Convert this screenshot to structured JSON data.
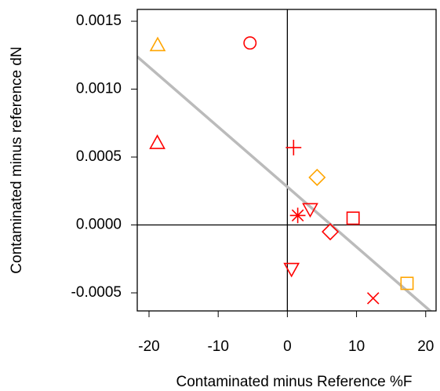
{
  "chart_data": {
    "type": "scatter",
    "x_label": "Contaminated minus Reference %F",
    "y_label": "Contaminated minus reference dN",
    "xlim": [
      -21.7,
      21.5
    ],
    "ylim": [
      -0.000633,
      0.001587
    ],
    "xticks": [
      -20,
      -10,
      0,
      10,
      20
    ],
    "yticks": [
      {
        "value": -0.0005,
        "label": "-0.0005"
      },
      {
        "value": 0,
        "label": "0.0000"
      },
      {
        "value": 0.0005,
        "label": "0.0005"
      },
      {
        "value": 0.001,
        "label": "0.0010"
      },
      {
        "value": 0.0015,
        "label": "0.0015"
      }
    ],
    "x": [
      -18.75,
      -5.4,
      -18.8,
      0.9,
      4.3,
      1.5,
      3.3,
      9.5,
      6.2,
      0.6,
      17.3,
      12.4
    ],
    "y": [
      0.00132,
      0.00134,
      0.0006,
      0.00057,
      0.00035,
      7e-05,
      0.00012,
      5e-05,
      -5e-05,
      -0.00032,
      -0.00043,
      -0.00054
    ],
    "markers": [
      "triangle-up",
      "circle",
      "triangle-up",
      "plus",
      "diamond",
      "asterisk",
      "triangle-down",
      "square",
      "diamond",
      "triangle-down",
      "square",
      "cross"
    ],
    "colors": [
      "#ffa500",
      "#ff0000",
      "#ff0000",
      "#ff0000",
      "#ffa500",
      "#ff0000",
      "#ff0000",
      "#ff0000",
      "#ff0000",
      "#ff0000",
      "#ffa500",
      "#ff0000"
    ],
    "fit_line": {
      "intercept": 0.00028,
      "slope": -4.42e-05,
      "color": "#bbbbbb"
    }
  }
}
